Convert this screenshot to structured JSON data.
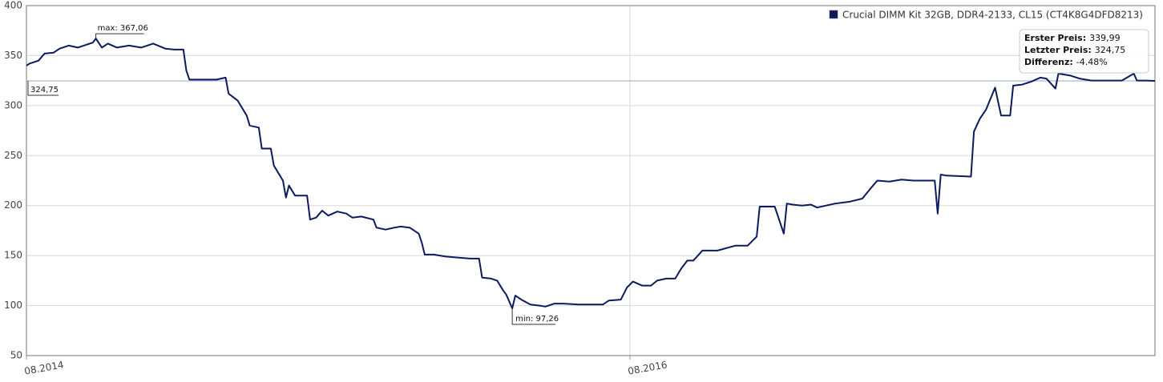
{
  "chart_data": {
    "type": "line",
    "x": [
      2014.58,
      2014.59,
      2014.62,
      2014.64,
      2014.67,
      2014.69,
      2014.72,
      2014.75,
      2014.77,
      2014.8,
      2014.81,
      2014.83,
      2014.85,
      2014.88,
      2014.92,
      2014.96,
      2015.0,
      2015.04,
      2015.07,
      2015.1,
      2015.11,
      2015.12,
      2015.16,
      2015.21,
      2015.24,
      2015.25,
      2015.28,
      2015.31,
      2015.32,
      2015.35,
      2015.36,
      2015.39,
      2015.4,
      2015.43,
      2015.44,
      2015.45,
      2015.47,
      2015.51,
      2015.52,
      2015.54,
      2015.56,
      2015.58,
      2015.61,
      2015.64,
      2015.66,
      2015.69,
      2015.73,
      2015.74,
      2015.77,
      2015.8,
      2015.82,
      2015.85,
      2015.88,
      2015.89,
      2015.9,
      2015.93,
      2015.97,
      2016.01,
      2016.05,
      2016.08,
      2016.09,
      2016.12,
      2016.14,
      2016.16,
      2016.17,
      2016.19,
      2016.2,
      2016.22,
      2016.25,
      2016.28,
      2016.3,
      2016.33,
      2016.36,
      2016.41,
      2016.49,
      2016.51,
      2016.55,
      2016.57,
      2016.59,
      2016.62,
      2016.65,
      2016.67,
      2016.7,
      2016.73,
      2016.75,
      2016.77,
      2016.79,
      2016.82,
      2016.87,
      2016.93,
      2016.97,
      2017.0,
      2017.01,
      2017.06,
      2017.09,
      2017.1,
      2017.12,
      2017.15,
      2017.18,
      2017.2,
      2017.26,
      2017.31,
      2017.35,
      2017.38,
      2017.4,
      2017.44,
      2017.48,
      2017.52,
      2017.59,
      2017.6,
      2017.61,
      2017.63,
      2017.71,
      2017.72,
      2017.74,
      2017.76,
      2017.79,
      2017.81,
      2017.84,
      2017.85,
      2017.88,
      2017.91,
      2017.94,
      2017.96,
      2017.99,
      2018.0,
      2018.04,
      2018.07,
      2018.11,
      2018.16,
      2018.21,
      2018.25,
      2018.26,
      2018.29,
      2018.32
    ],
    "series": [
      {
        "name": "Crucial DIMM Kit 32GB, DDR4-2133, CL15 (CT4K8G4DFD8213)",
        "color": "#0c1a5e",
        "values": [
          339.99,
          342,
          345,
          352,
          353,
          357,
          360,
          358,
          360,
          363,
          367.06,
          358,
          362,
          358,
          360,
          358,
          362,
          357,
          356,
          356,
          335,
          326,
          326,
          326,
          328,
          312,
          305,
          290,
          280,
          278,
          257,
          257,
          240,
          225,
          208,
          220,
          210,
          210,
          186,
          188,
          195,
          190,
          194,
          192,
          188,
          189,
          186,
          178,
          176,
          178,
          179,
          178,
          172,
          163,
          151,
          151,
          149,
          148,
          147,
          147,
          128,
          127,
          125,
          115,
          111,
          97.26,
          110,
          106,
          101,
          100,
          99,
          102,
          102,
          101,
          101,
          105,
          106,
          118,
          124,
          120,
          120,
          125,
          127,
          127,
          137,
          145,
          145,
          155,
          155,
          160,
          160,
          169,
          199,
          199,
          172,
          202,
          201,
          200,
          201,
          198,
          202,
          204,
          207,
          218,
          225,
          224,
          226,
          225,
          225,
          192,
          231,
          230,
          229,
          274,
          287,
          296,
          318,
          290,
          290,
          320,
          321,
          324,
          328,
          327,
          317,
          332,
          330,
          327,
          325,
          325,
          325,
          332,
          325,
          325,
          324.75
        ]
      }
    ],
    "xlim": [
      2014.58,
      2018.32
    ],
    "xticks": [
      {
        "value": 2014.58,
        "label": "08.2014"
      },
      {
        "value": 2016.58,
        "label": "08.2016"
      }
    ],
    "ylim": [
      50,
      400
    ],
    "yticks": [
      50,
      100,
      150,
      200,
      250,
      300,
      350,
      400
    ],
    "grid": true,
    "legend": "top-right",
    "annotations": [
      {
        "kind": "max",
        "text": "max: 367,06",
        "x": 2014.81,
        "value": 367.06
      },
      {
        "kind": "min",
        "text": "min: 97,26",
        "x": 2016.19,
        "value": 97.26
      },
      {
        "kind": "last",
        "text": "324,75",
        "x": 2014.58,
        "value": 324.75
      }
    ],
    "info": [
      {
        "label": "Erster Preis:",
        "value": "339,99"
      },
      {
        "label": "Letzter Preis:",
        "value": "324,75"
      },
      {
        "label": "Differenz:",
        "value": "-4.48%"
      }
    ]
  }
}
